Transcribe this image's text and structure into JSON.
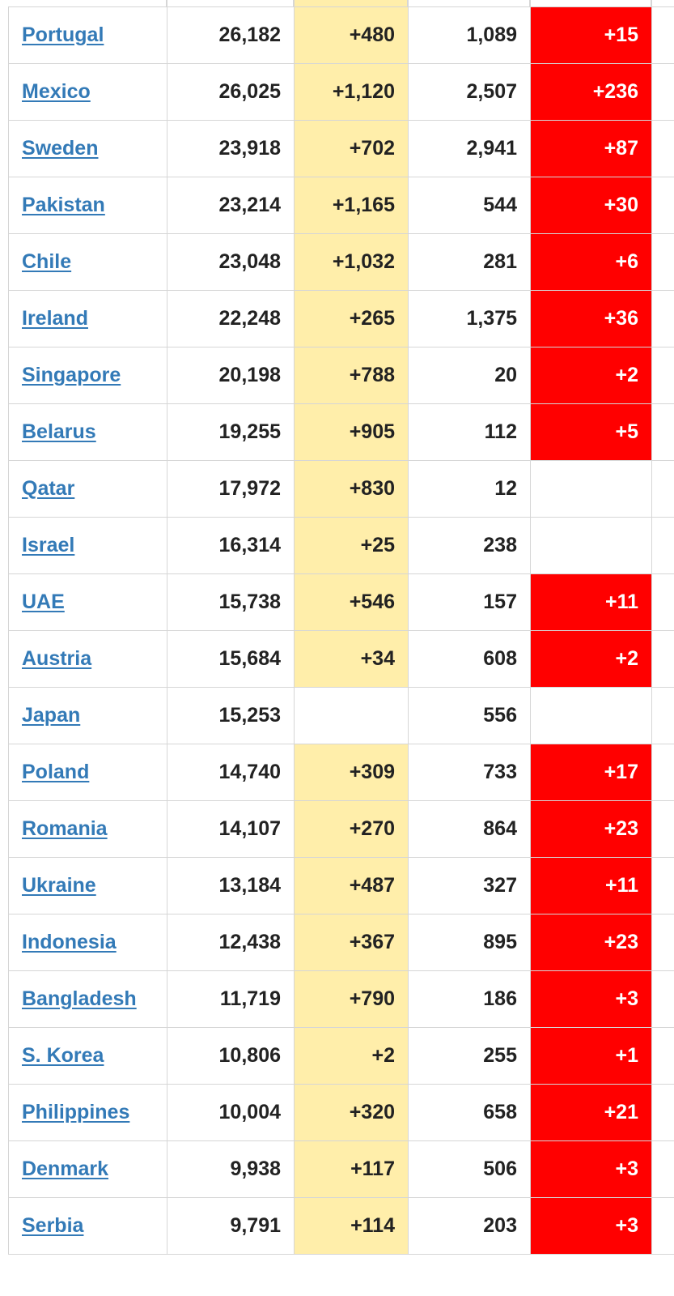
{
  "table": {
    "rows": [
      {
        "country": "Portugal",
        "total_cases": "26,182",
        "new_cases": "+480",
        "total_deaths": "1,089",
        "new_deaths": "+15"
      },
      {
        "country": "Mexico",
        "total_cases": "26,025",
        "new_cases": "+1,120",
        "total_deaths": "2,507",
        "new_deaths": "+236"
      },
      {
        "country": "Sweden",
        "total_cases": "23,918",
        "new_cases": "+702",
        "total_deaths": "2,941",
        "new_deaths": "+87"
      },
      {
        "country": "Pakistan",
        "total_cases": "23,214",
        "new_cases": "+1,165",
        "total_deaths": "544",
        "new_deaths": "+30"
      },
      {
        "country": "Chile",
        "total_cases": "23,048",
        "new_cases": "+1,032",
        "total_deaths": "281",
        "new_deaths": "+6"
      },
      {
        "country": "Ireland",
        "total_cases": "22,248",
        "new_cases": "+265",
        "total_deaths": "1,375",
        "new_deaths": "+36"
      },
      {
        "country": "Singapore",
        "total_cases": "20,198",
        "new_cases": "+788",
        "total_deaths": "20",
        "new_deaths": "+2"
      },
      {
        "country": "Belarus",
        "total_cases": "19,255",
        "new_cases": "+905",
        "total_deaths": "112",
        "new_deaths": "+5"
      },
      {
        "country": "Qatar",
        "total_cases": "17,972",
        "new_cases": "+830",
        "total_deaths": "12",
        "new_deaths": ""
      },
      {
        "country": "Israel",
        "total_cases": "16,314",
        "new_cases": "+25",
        "total_deaths": "238",
        "new_deaths": ""
      },
      {
        "country": "UAE",
        "total_cases": "15,738",
        "new_cases": "+546",
        "total_deaths": "157",
        "new_deaths": "+11"
      },
      {
        "country": "Austria",
        "total_cases": "15,684",
        "new_cases": "+34",
        "total_deaths": "608",
        "new_deaths": "+2"
      },
      {
        "country": "Japan",
        "total_cases": "15,253",
        "new_cases": "",
        "total_deaths": "556",
        "new_deaths": ""
      },
      {
        "country": "Poland",
        "total_cases": "14,740",
        "new_cases": "+309",
        "total_deaths": "733",
        "new_deaths": "+17"
      },
      {
        "country": "Romania",
        "total_cases": "14,107",
        "new_cases": "+270",
        "total_deaths": "864",
        "new_deaths": "+23"
      },
      {
        "country": "Ukraine",
        "total_cases": "13,184",
        "new_cases": "+487",
        "total_deaths": "327",
        "new_deaths": "+11"
      },
      {
        "country": "Indonesia",
        "total_cases": "12,438",
        "new_cases": "+367",
        "total_deaths": "895",
        "new_deaths": "+23"
      },
      {
        "country": "Bangladesh",
        "total_cases": "11,719",
        "new_cases": "+790",
        "total_deaths": "186",
        "new_deaths": "+3"
      },
      {
        "country": "S. Korea",
        "total_cases": "10,806",
        "new_cases": "+2",
        "total_deaths": "255",
        "new_deaths": "+1"
      },
      {
        "country": "Philippines",
        "total_cases": "10,004",
        "new_cases": "+320",
        "total_deaths": "658",
        "new_deaths": "+21"
      },
      {
        "country": "Denmark",
        "total_cases": "9,938",
        "new_cases": "+117",
        "total_deaths": "506",
        "new_deaths": "+3"
      },
      {
        "country": "Serbia",
        "total_cases": "9,791",
        "new_cases": "+114",
        "total_deaths": "203",
        "new_deaths": "+3"
      }
    ]
  },
  "colors": {
    "new_cases_bg": "#ffeeaa",
    "new_deaths_bg": "#ff0000",
    "link": "#337ab7",
    "border": "#d6d6d6"
  }
}
